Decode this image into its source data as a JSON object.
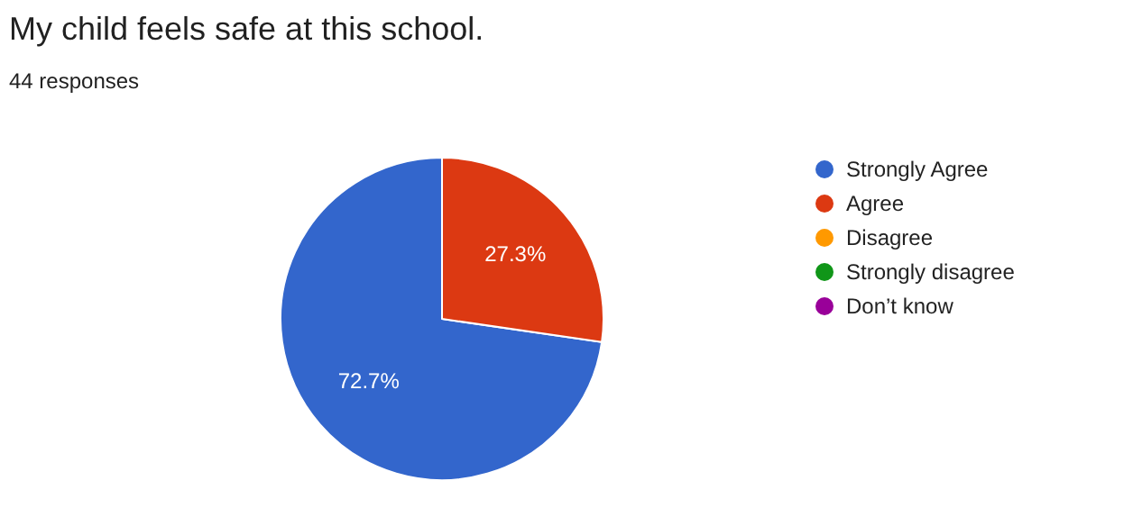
{
  "chart_data": {
    "type": "pie",
    "title": "My child feels safe at this school.",
    "subtitle": "44 responses",
    "categories": [
      "Strongly Agree",
      "Agree",
      "Disagree",
      "Strongly disagree",
      "Don’t know"
    ],
    "values": [
      72.7,
      27.3,
      0,
      0,
      0
    ],
    "colors": [
      "#3366cc",
      "#dc3912",
      "#ff9900",
      "#109618",
      "#990099"
    ],
    "value_labels": [
      "72.7%",
      "27.3%",
      null,
      null,
      null
    ],
    "legend": "right"
  }
}
